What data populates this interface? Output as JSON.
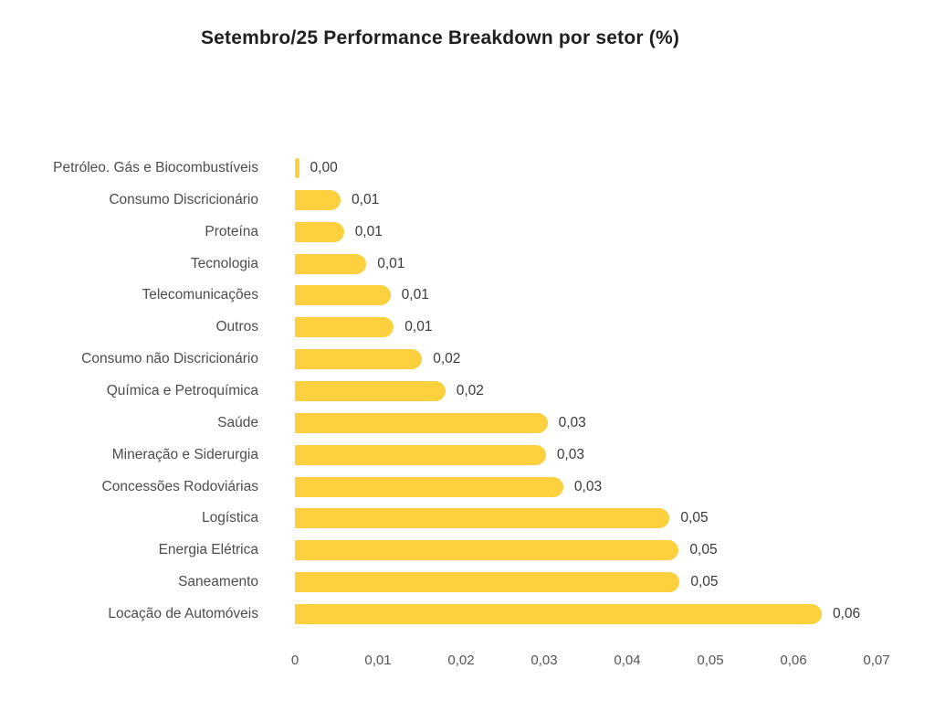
{
  "title": "Setembro/25 Performance Breakdown por setor (%)",
  "chart_data": {
    "type": "bar",
    "orientation": "horizontal",
    "title": "Setembro/25 Performance Breakdown por setor (%)",
    "xlabel": "",
    "ylabel": "",
    "xlim": [
      0,
      0.07
    ],
    "grid": false,
    "legend": false,
    "bar_color": "#FCD03E",
    "categories": [
      "Petróleo. Gás e Biocombustíveis",
      "Consumo Discricionário",
      "Proteína",
      "Tecnologia",
      "Telecomunicações",
      "Outros",
      "Consumo não Discricionário",
      "Química e Petroquímica",
      "Saúde",
      "Mineração e Siderurgia",
      "Concessões Rodoviárias",
      "Logística",
      "Energia Elétrica",
      "Saneamento",
      "Locação de Automóveis"
    ],
    "values": [
      0.0005,
      0.0055,
      0.0059,
      0.0086,
      0.0115,
      0.0119,
      0.0153,
      0.0181,
      0.0304,
      0.0302,
      0.0323,
      0.0451,
      0.0462,
      0.0463,
      0.0634
    ],
    "value_labels": [
      "0,00",
      "0,01",
      "0,01",
      "0,01",
      "0,01",
      "0,01",
      "0,02",
      "0,02",
      "0,03",
      "0,03",
      "0,03",
      "0,05",
      "0,05",
      "0,05",
      "0,06"
    ],
    "x_ticks": [
      {
        "value": 0.0,
        "label": "0"
      },
      {
        "value": 0.01,
        "label": "0,01"
      },
      {
        "value": 0.02,
        "label": "0,02"
      },
      {
        "value": 0.03,
        "label": "0,03"
      },
      {
        "value": 0.04,
        "label": "0,04"
      },
      {
        "value": 0.05,
        "label": "0,05"
      },
      {
        "value": 0.06,
        "label": "0,06"
      },
      {
        "value": 0.07,
        "label": "0,07"
      }
    ]
  }
}
